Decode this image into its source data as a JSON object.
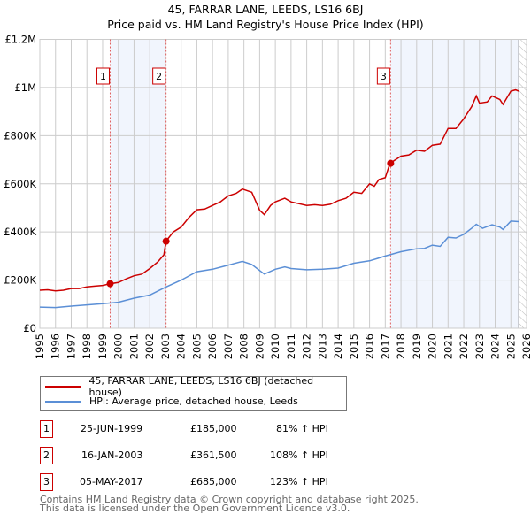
{
  "chart_data": {
    "type": "line",
    "title": "45, FARRAR LANE, LEEDS, LS16 6BJ",
    "subtitle": "Price paid vs. HM Land Registry's House Price Index (HPI)",
    "xlim": [
      1995,
      2026
    ],
    "ylim": [
      0,
      1200000
    ],
    "x_ticks": [
      "1995",
      "1996",
      "1997",
      "1998",
      "1999",
      "2000",
      "2001",
      "2002",
      "2003",
      "2004",
      "2005",
      "2006",
      "2007",
      "2008",
      "2009",
      "2010",
      "2011",
      "2012",
      "2013",
      "2014",
      "2015",
      "2016",
      "2017",
      "2018",
      "2019",
      "2020",
      "2021",
      "2022",
      "2023",
      "2024",
      "2025",
      "2026"
    ],
    "y_ticks": [
      {
        "v": 0,
        "label": "£0"
      },
      {
        "v": 200000,
        "label": "£200K"
      },
      {
        "v": 400000,
        "label": "£400K"
      },
      {
        "v": 600000,
        "label": "£600K"
      },
      {
        "v": 800000,
        "label": "£800K"
      },
      {
        "v": 1000000,
        "label": "£1M"
      },
      {
        "v": 1200000,
        "label": "£1.2M"
      }
    ],
    "grid": true,
    "data_end": 2025.5,
    "series": [
      {
        "name": "45, FARRAR LANE, LEEDS, LS16 6BJ (detached house)",
        "color": "#cc0000",
        "x": [
          1995,
          1995.5,
          1996,
          1996.5,
          1997,
          1997.5,
          1998,
          1998.5,
          1999,
          1999.48,
          2000,
          2000.5,
          2001,
          2001.5,
          2002,
          2002.5,
          2002.9,
          2003.04,
          2003.5,
          2004,
          2004.5,
          2005,
          2005.5,
          2006,
          2006.5,
          2007,
          2007.5,
          2007.9,
          2008.5,
          2009,
          2009.3,
          2009.7,
          2010,
          2010.6,
          2011,
          2012,
          2012.5,
          2013,
          2013.5,
          2014,
          2014.5,
          2015,
          2015.5,
          2016,
          2016.3,
          2016.6,
          2017,
          2017.3,
          2018,
          2018.5,
          2019,
          2019.5,
          2020,
          2020.5,
          2021,
          2021.5,
          2022,
          2022.5,
          2022.8,
          2023,
          2023.5,
          2023.8,
          2024.3,
          2024.5,
          2025,
          2025.3,
          2025.5
        ],
        "y": [
          158000,
          160000,
          155000,
          158000,
          165000,
          165000,
          172000,
          175000,
          178000,
          185000,
          190000,
          205000,
          218000,
          225000,
          248000,
          275000,
          305000,
          361500,
          400000,
          420000,
          460000,
          492000,
          495000,
          510000,
          525000,
          550000,
          560000,
          578000,
          565000,
          490000,
          472000,
          510000,
          525000,
          540000,
          525000,
          510000,
          513000,
          510000,
          515000,
          530000,
          540000,
          565000,
          560000,
          600000,
          590000,
          618000,
          625000,
          685000,
          715000,
          720000,
          740000,
          735000,
          760000,
          765000,
          830000,
          830000,
          870000,
          920000,
          965000,
          935000,
          940000,
          965000,
          950000,
          930000,
          985000,
          990000,
          985000
        ]
      },
      {
        "name": "HPI: Average price, detached house, Leeds",
        "color": "#5b8fd6",
        "x": [
          1995,
          1996,
          1997,
          1998,
          1999,
          2000,
          2001,
          2002,
          2003,
          2004,
          2005,
          2006,
          2007,
          2007.9,
          2008.5,
          2009.3,
          2010,
          2010.6,
          2011,
          2012,
          2013,
          2014,
          2015,
          2016,
          2016.5,
          2017,
          2018,
          2019,
          2019.5,
          2020,
          2020.5,
          2021,
          2021.5,
          2022,
          2022.5,
          2022.8,
          2023.2,
          2023.8,
          2024.3,
          2024.5,
          2025,
          2025.5
        ],
        "y": [
          88000,
          86000,
          92000,
          97000,
          102000,
          108000,
          125000,
          138000,
          170000,
          200000,
          235000,
          245000,
          262000,
          278000,
          265000,
          225000,
          245000,
          255000,
          248000,
          243000,
          245000,
          250000,
          270000,
          280000,
          290000,
          300000,
          318000,
          330000,
          332000,
          345000,
          340000,
          378000,
          375000,
          390000,
          415000,
          432000,
          415000,
          430000,
          420000,
          410000,
          445000,
          443000
        ]
      }
    ],
    "sales": [
      {
        "num": "1",
        "x": 1999.48,
        "price": 185000,
        "date": "25-JUN-1999",
        "price_label": "£185,000",
        "hpi": "81% ↑ HPI"
      },
      {
        "num": "2",
        "x": 2003.04,
        "price": 361500,
        "date": "16-JAN-2003",
        "price_label": "£361,500",
        "hpi": "108% ↑ HPI"
      },
      {
        "num": "3",
        "x": 2017.34,
        "price": 685000,
        "date": "05-MAY-2017",
        "price_label": "£685,000",
        "hpi": "123% ↑ HPI"
      }
    ],
    "shaded_ranges": [
      [
        1999.48,
        2003.04
      ],
      [
        2017.34,
        2025.5
      ]
    ],
    "legend_placement": "below"
  },
  "footer": {
    "line1": "Contains HM Land Registry data © Crown copyright and database right 2025.",
    "line2": "This data is licensed under the Open Government Licence v3.0."
  }
}
